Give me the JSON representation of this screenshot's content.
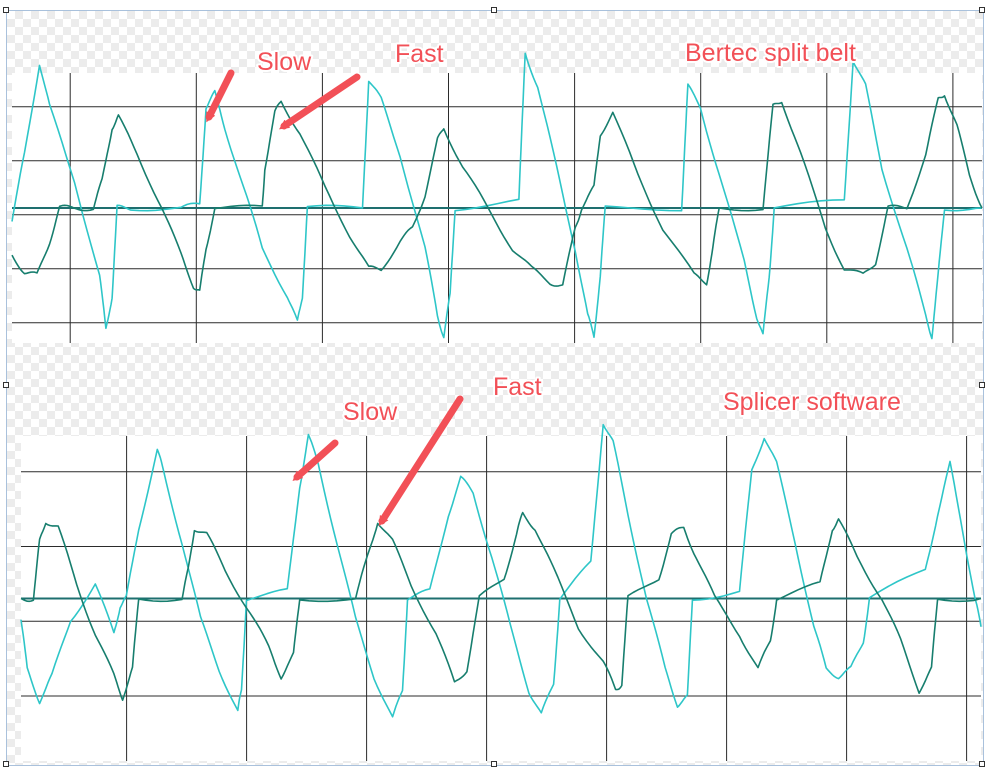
{
  "colors": {
    "grid": "#2b2b2b",
    "baseline": "#1e6f6f",
    "slow_trace": "#2ec6c8",
    "fast_trace": "#177e6e",
    "annotation": "#f25057"
  },
  "chart_data": [
    {
      "type": "line",
      "title": "Bertec split belt",
      "grid": true,
      "axes_labels_visible": false,
      "ylim": [
        -2,
        2
      ],
      "x_range": [
        0,
        7.75
      ],
      "series": [
        {
          "name": "Slow",
          "color": "#2ec6c8",
          "points": [
            [
              0.0,
              -0.2
            ],
            [
              0.1,
              0.8
            ],
            [
              0.22,
              2.15
            ],
            [
              0.3,
              1.5
            ],
            [
              0.5,
              0.4
            ],
            [
              0.7,
              -1.0
            ],
            [
              0.75,
              -1.8
            ],
            [
              0.8,
              -1.3
            ],
            [
              0.84,
              0.0
            ],
            [
              0.95,
              0.0
            ],
            [
              1.35,
              0.0
            ],
            [
              1.5,
              0.05
            ],
            [
              1.55,
              1.5
            ],
            [
              1.62,
              1.7
            ],
            [
              1.7,
              1.2
            ],
            [
              1.85,
              0.3
            ],
            [
              2.0,
              -0.6
            ],
            [
              2.2,
              -1.3
            ],
            [
              2.28,
              -1.7
            ],
            [
              2.32,
              -1.3
            ],
            [
              2.36,
              0.0
            ],
            [
              2.8,
              0.0
            ],
            [
              2.85,
              1.9
            ],
            [
              2.95,
              1.6
            ],
            [
              3.1,
              0.8
            ],
            [
              3.3,
              -0.6
            ],
            [
              3.4,
              -1.6
            ],
            [
              3.45,
              -1.9
            ],
            [
              3.5,
              -1.3
            ],
            [
              3.54,
              0.0
            ],
            [
              4.05,
              0.1
            ],
            [
              4.1,
              2.3
            ],
            [
              4.2,
              1.8
            ],
            [
              4.35,
              0.6
            ],
            [
              4.5,
              -0.6
            ],
            [
              4.6,
              -1.6
            ],
            [
              4.65,
              -1.9
            ],
            [
              4.7,
              -1.0
            ],
            [
              4.74,
              0.0
            ],
            [
              5.35,
              0.0
            ],
            [
              5.4,
              1.8
            ],
            [
              5.5,
              1.5
            ],
            [
              5.65,
              0.5
            ],
            [
              5.85,
              -0.8
            ],
            [
              5.95,
              -1.6
            ],
            [
              6.0,
              -1.9
            ],
            [
              6.05,
              -1.0
            ],
            [
              6.09,
              0.0
            ],
            [
              6.65,
              0.1
            ],
            [
              6.72,
              2.2
            ],
            [
              6.82,
              1.8
            ],
            [
              6.95,
              0.6
            ],
            [
              7.15,
              -0.6
            ],
            [
              7.3,
              -1.6
            ],
            [
              7.35,
              -1.9
            ],
            [
              7.4,
              -1.0
            ],
            [
              7.45,
              0.0
            ],
            [
              7.75,
              0.0
            ]
          ]
        },
        {
          "name": "Fast",
          "color": "#177e6e",
          "points": [
            [
              0.0,
              -0.7
            ],
            [
              0.1,
              -0.95
            ],
            [
              0.2,
              -1.0
            ],
            [
              0.3,
              -0.5
            ],
            [
              0.38,
              0.0
            ],
            [
              0.5,
              0.0
            ],
            [
              0.65,
              0.0
            ],
            [
              0.72,
              0.4
            ],
            [
              0.8,
              1.2
            ],
            [
              0.85,
              1.35
            ],
            [
              1.0,
              0.8
            ],
            [
              1.2,
              0.0
            ],
            [
              1.35,
              -0.7
            ],
            [
              1.45,
              -1.15
            ],
            [
              1.5,
              -1.25
            ],
            [
              1.55,
              -0.6
            ],
            [
              1.62,
              0.0
            ],
            [
              2.0,
              0.0
            ],
            [
              2.02,
              0.6
            ],
            [
              2.1,
              1.4
            ],
            [
              2.15,
              1.6
            ],
            [
              2.3,
              1.1
            ],
            [
              2.5,
              0.3
            ],
            [
              2.7,
              -0.4
            ],
            [
              2.85,
              -0.9
            ],
            [
              2.95,
              -0.9
            ],
            [
              3.1,
              -0.5
            ],
            [
              3.2,
              -0.3
            ],
            [
              3.3,
              0.2
            ],
            [
              3.4,
              1.0
            ],
            [
              3.45,
              1.2
            ],
            [
              3.6,
              0.6
            ],
            [
              3.8,
              0.0
            ],
            [
              4.0,
              -0.6
            ],
            [
              4.15,
              -0.9
            ],
            [
              4.3,
              -1.1
            ],
            [
              4.4,
              -1.15
            ],
            [
              4.5,
              -0.3
            ],
            [
              4.55,
              0.0
            ],
            [
              4.65,
              0.3
            ],
            [
              4.7,
              1.1
            ],
            [
              4.8,
              1.4
            ],
            [
              5.0,
              0.5
            ],
            [
              5.2,
              -0.3
            ],
            [
              5.45,
              -1.0
            ],
            [
              5.55,
              -1.1
            ],
            [
              5.6,
              -0.6
            ],
            [
              5.65,
              0.0
            ],
            [
              6.0,
              0.0
            ],
            [
              6.08,
              1.5
            ],
            [
              6.15,
              1.6
            ],
            [
              6.3,
              0.8
            ],
            [
              6.5,
              -0.3
            ],
            [
              6.65,
              -0.9
            ],
            [
              6.8,
              -1.0
            ],
            [
              6.9,
              -0.8
            ],
            [
              7.0,
              0.0
            ],
            [
              7.15,
              0.0
            ],
            [
              7.3,
              0.8
            ],
            [
              7.4,
              1.6
            ],
            [
              7.45,
              1.7
            ],
            [
              7.55,
              1.2
            ],
            [
              7.65,
              0.5
            ],
            [
              7.75,
              0.0
            ]
          ]
        }
      ],
      "annotations": [
        {
          "label": "Slow",
          "target_series": "Slow"
        },
        {
          "label": "Fast",
          "target_series": "Fast"
        }
      ]
    },
    {
      "type": "line",
      "title": "Splicer software",
      "grid": true,
      "axes_labels_visible": false,
      "ylim": [
        -2.3,
        2.3
      ],
      "x_range": [
        0,
        7.75
      ],
      "series": [
        {
          "name": "Slow",
          "color": "#2ec6c8",
          "points": [
            [
              0.0,
              -0.3
            ],
            [
              0.05,
              -1.0
            ],
            [
              0.15,
              -1.45
            ],
            [
              0.25,
              -1.1
            ],
            [
              0.4,
              -0.3
            ],
            [
              0.6,
              0.2
            ],
            [
              0.75,
              -0.5
            ],
            [
              0.8,
              -0.1
            ],
            [
              0.85,
              0.0
            ],
            [
              0.95,
              1.0
            ],
            [
              1.1,
              2.1
            ],
            [
              1.15,
              1.8
            ],
            [
              1.3,
              0.8
            ],
            [
              1.45,
              -0.3
            ],
            [
              1.6,
              -1.0
            ],
            [
              1.75,
              -1.6
            ],
            [
              1.78,
              -1.3
            ],
            [
              1.82,
              0.0
            ],
            [
              2.15,
              0.1
            ],
            [
              2.25,
              1.6
            ],
            [
              2.32,
              2.3
            ],
            [
              2.4,
              1.9
            ],
            [
              2.55,
              0.8
            ],
            [
              2.7,
              -0.3
            ],
            [
              2.85,
              -1.1
            ],
            [
              3.0,
              -1.7
            ],
            [
              3.08,
              -1.3
            ],
            [
              3.12,
              0.0
            ],
            [
              3.3,
              0.1
            ],
            [
              3.45,
              1.2
            ],
            [
              3.55,
              1.7
            ],
            [
              3.65,
              1.5
            ],
            [
              3.8,
              0.6
            ],
            [
              3.95,
              -0.4
            ],
            [
              4.1,
              -1.3
            ],
            [
              4.2,
              -1.65
            ],
            [
              4.3,
              -1.2
            ],
            [
              4.35,
              0.0
            ],
            [
              4.6,
              0.5
            ],
            [
              4.7,
              2.5
            ],
            [
              4.78,
              2.2
            ],
            [
              4.9,
              1.2
            ],
            [
              5.05,
              0.0
            ],
            [
              5.2,
              -1.0
            ],
            [
              5.3,
              -1.5
            ],
            [
              5.38,
              -1.4
            ],
            [
              5.42,
              0.0
            ],
            [
              5.8,
              0.1
            ],
            [
              5.9,
              1.8
            ],
            [
              6.0,
              2.3
            ],
            [
              6.1,
              1.9
            ],
            [
              6.25,
              0.8
            ],
            [
              6.4,
              -0.4
            ],
            [
              6.5,
              -1.0
            ],
            [
              6.6,
              -1.1
            ],
            [
              6.7,
              -1.0
            ],
            [
              6.8,
              -0.6
            ],
            [
              6.85,
              0.0
            ],
            [
              7.3,
              0.4
            ],
            [
              7.4,
              1.2
            ],
            [
              7.5,
              1.9
            ],
            [
              7.6,
              1.0
            ],
            [
              7.7,
              0.0
            ],
            [
              7.75,
              -0.4
            ]
          ]
        },
        {
          "name": "Fast",
          "color": "#177e6e",
          "points": [
            [
              0.0,
              0.0
            ],
            [
              0.1,
              0.0
            ],
            [
              0.15,
              0.8
            ],
            [
              0.2,
              1.1
            ],
            [
              0.3,
              1.0
            ],
            [
              0.45,
              0.2
            ],
            [
              0.6,
              -0.5
            ],
            [
              0.75,
              -1.1
            ],
            [
              0.82,
              -1.4
            ],
            [
              0.9,
              -1.0
            ],
            [
              0.95,
              0.0
            ],
            [
              1.3,
              0.0
            ],
            [
              1.35,
              0.4
            ],
            [
              1.4,
              1.0
            ],
            [
              1.5,
              0.9
            ],
            [
              1.65,
              0.4
            ],
            [
              1.85,
              -0.2
            ],
            [
              2.0,
              -0.7
            ],
            [
              2.1,
              -1.1
            ],
            [
              2.2,
              -0.8
            ],
            [
              2.25,
              0.0
            ],
            [
              2.7,
              0.0
            ],
            [
              2.8,
              0.6
            ],
            [
              2.88,
              1.1
            ],
            [
              3.0,
              0.8
            ],
            [
              3.15,
              0.2
            ],
            [
              3.35,
              -0.5
            ],
            [
              3.5,
              -1.2
            ],
            [
              3.6,
              -1.0
            ],
            [
              3.7,
              0.0
            ],
            [
              3.9,
              0.3
            ],
            [
              4.0,
              0.9
            ],
            [
              4.05,
              1.2
            ],
            [
              4.15,
              1.0
            ],
            [
              4.3,
              0.4
            ],
            [
              4.5,
              -0.4
            ],
            [
              4.7,
              -0.9
            ],
            [
              4.8,
              -1.3
            ],
            [
              4.85,
              -1.2
            ],
            [
              4.9,
              0.0
            ],
            [
              5.15,
              0.3
            ],
            [
              5.25,
              0.9
            ],
            [
              5.35,
              1.0
            ],
            [
              5.45,
              0.6
            ],
            [
              5.6,
              0.0
            ],
            [
              5.8,
              -0.5
            ],
            [
              5.95,
              -1.0
            ],
            [
              6.05,
              -0.6
            ],
            [
              6.1,
              0.0
            ],
            [
              6.45,
              0.2
            ],
            [
              6.55,
              1.0
            ],
            [
              6.6,
              1.1
            ],
            [
              6.75,
              0.6
            ],
            [
              6.95,
              0.0
            ],
            [
              7.1,
              -0.6
            ],
            [
              7.25,
              -1.3
            ],
            [
              7.35,
              -1.0
            ],
            [
              7.4,
              0.0
            ],
            [
              7.75,
              0.0
            ]
          ]
        }
      ],
      "annotations": [
        {
          "label": "Slow",
          "target_series": "Slow"
        },
        {
          "label": "Fast",
          "target_series": "Fast"
        }
      ]
    }
  ]
}
